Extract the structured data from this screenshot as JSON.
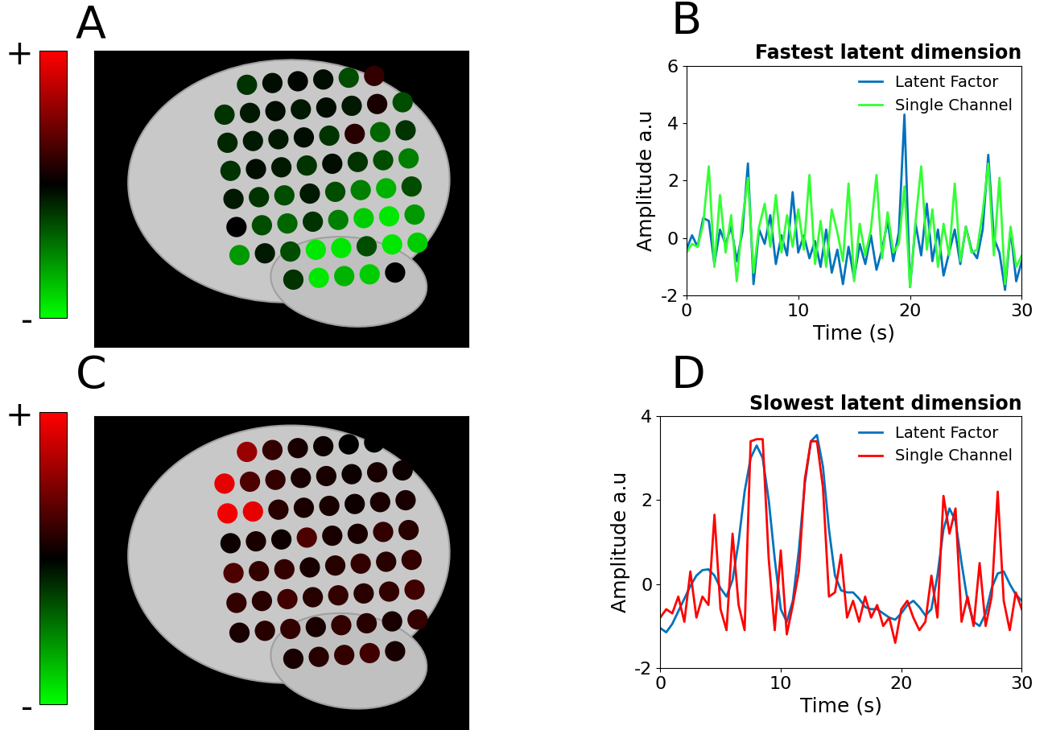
{
  "chart_data": [
    {
      "type": "electrode_map",
      "panel": "A",
      "colorbar": {
        "range": [
          -1,
          1
        ],
        "ticks": [
          {
            "value": 1,
            "label": "+"
          },
          {
            "value": -1,
            "label": "-"
          }
        ]
      },
      "tick_labels": false,
      "cells": [
        [
          null,
          -0.2,
          -0.05,
          -0.02,
          -0.05,
          -0.3,
          0.2,
          null
        ],
        [
          -0.2,
          -0.1,
          -0.05,
          -0.1,
          -0.05,
          -0.1,
          0.1,
          -0.3
        ],
        [
          -0.15,
          -0.1,
          -0.1,
          -0.05,
          -0.2,
          0.15,
          -0.4,
          -0.2
        ],
        [
          -0.2,
          -0.05,
          -0.1,
          -0.2,
          -0.05,
          -0.2,
          -0.3,
          -0.5
        ],
        [
          -0.1,
          -0.2,
          -0.3,
          -0.1,
          -0.3,
          -0.5,
          -0.7,
          -0.3
        ],
        [
          0.0,
          -0.3,
          -0.4,
          -0.2,
          -0.5,
          -0.8,
          -0.9,
          -0.6
        ],
        [
          -0.6,
          -0.1,
          -0.3,
          -0.9,
          -0.9,
          -0.3,
          -0.9,
          -0.8
        ],
        [
          null,
          null,
          -0.2,
          -0.9,
          -0.7,
          -0.8,
          0.0,
          null
        ]
      ]
    },
    {
      "type": "line",
      "panel": "B",
      "title": "Fastest latent dimension",
      "x_label": "Time (s)",
      "y_label": "Amplitude a.u",
      "xlim": [
        0,
        30
      ],
      "xticks": [
        0,
        10,
        20,
        30
      ],
      "ylim": [
        -2,
        6
      ],
      "yticks": [
        -2,
        0,
        2,
        4,
        6
      ],
      "legend": "upper right",
      "x": [
        0,
        0.5,
        1,
        1.5,
        2,
        2.5,
        3,
        3.5,
        4,
        4.5,
        5,
        5.5,
        6,
        6.5,
        7,
        7.5,
        8,
        8.5,
        9,
        9.5,
        10,
        10.5,
        11,
        11.5,
        12,
        12.5,
        13,
        13.5,
        14,
        14.5,
        15,
        15.5,
        16,
        16.5,
        17,
        17.5,
        18,
        18.5,
        19,
        19.5,
        20,
        20.5,
        21,
        21.5,
        22,
        22.5,
        23,
        23.5,
        24,
        24.5,
        25,
        25.5,
        26,
        26.5,
        27,
        27.5,
        28,
        28.5,
        29,
        29.5,
        30
      ],
      "series": [
        {
          "name": "Latent Factor",
          "color": "#0072bd",
          "values": [
            -0.4,
            0.1,
            -0.3,
            0.7,
            0.6,
            -0.9,
            0.3,
            -0.2,
            0.4,
            -0.8,
            0.2,
            2.6,
            -1.6,
            0.3,
            -0.2,
            0.8,
            -0.9,
            0.1,
            -0.6,
            1.6,
            -0.5,
            0.1,
            -0.7,
            -0.1,
            -1.0,
            0.3,
            -1.2,
            -0.4,
            -1.6,
            -0.3,
            -1.4,
            -0.2,
            -0.9,
            0.1,
            -1.1,
            -0.4,
            0.6,
            -0.8,
            0.2,
            4.3,
            -1.7,
            0.5,
            -0.6,
            1.2,
            -0.8,
            0.3,
            -1.3,
            -0.5,
            0.3,
            -0.9,
            0.4,
            -0.4,
            -0.7,
            0.3,
            2.9,
            0.0,
            -0.5,
            -1.8,
            0.3,
            -1.5,
            -0.8
          ]
        },
        {
          "name": "Single Channel",
          "color": "#33ff33",
          "values": [
            -0.5,
            -0.2,
            -0.3,
            0.5,
            2.5,
            -1.0,
            1.5,
            -0.5,
            0.8,
            -1.5,
            0.6,
            2.1,
            -1.2,
            0.4,
            1.2,
            -0.3,
            1.5,
            -0.5,
            0.8,
            -0.3,
            1.0,
            -0.4,
            2.2,
            -0.9,
            0.6,
            -1.0,
            1.0,
            0.2,
            -0.8,
            1.9,
            -1.5,
            0.5,
            -0.6,
            0.3,
            2.2,
            -0.7,
            0.9,
            -0.5,
            -0.2,
            1.8,
            -1.7,
            0.6,
            2.5,
            -0.4,
            1.0,
            -1.0,
            0.5,
            -0.6,
            1.9,
            -0.8,
            0.4,
            -0.5,
            -0.4,
            0.9,
            2.6,
            -0.6,
            2.1,
            -1.6,
            0.4,
            -1.0,
            -0.6
          ]
        }
      ]
    },
    {
      "type": "electrode_map",
      "panel": "C",
      "colorbar": {
        "range": [
          -1,
          1
        ],
        "ticks": [
          {
            "value": 1,
            "label": "+"
          },
          {
            "value": -1,
            "label": "-"
          }
        ]
      },
      "tick_labels": false,
      "cells": [
        [
          null,
          0.6,
          0.2,
          0.1,
          0.05,
          0.0,
          0.0,
          null
        ],
        [
          0.9,
          0.3,
          0.2,
          0.1,
          0.1,
          0.05,
          0.1,
          0.05
        ],
        [
          0.95,
          0.9,
          0.15,
          0.1,
          0.1,
          0.05,
          0.1,
          0.1
        ],
        [
          0.05,
          0.1,
          0.05,
          0.3,
          0.1,
          0.1,
          0.2,
          0.15
        ],
        [
          0.3,
          0.2,
          0.2,
          0.1,
          0.15,
          0.2,
          0.15,
          0.2
        ],
        [
          0.2,
          0.15,
          0.25,
          0.15,
          0.2,
          0.15,
          0.2,
          0.25
        ],
        [
          0.1,
          0.15,
          0.2,
          0.1,
          0.2,
          0.15,
          0.1,
          0.2
        ],
        [
          null,
          null,
          0.1,
          0.15,
          0.2,
          0.25,
          0.1,
          null
        ]
      ]
    },
    {
      "type": "line",
      "panel": "D",
      "title": "Slowest latent dimension",
      "x_label": "Time (s)",
      "y_label": "Amplitude a.u",
      "xlim": [
        0,
        30
      ],
      "xticks": [
        0,
        10,
        20,
        30
      ],
      "ylim": [
        -2,
        4
      ],
      "yticks": [
        -2,
        0,
        2,
        4
      ],
      "legend": "upper right",
      "x": [
        0,
        0.5,
        1,
        1.5,
        2,
        2.5,
        3,
        3.5,
        4,
        4.5,
        5,
        5.5,
        6,
        6.5,
        7,
        7.5,
        8,
        8.5,
        9,
        9.5,
        10,
        10.5,
        11,
        11.5,
        12,
        12.5,
        13,
        13.5,
        14,
        14.5,
        15,
        15.5,
        16,
        16.5,
        17,
        17.5,
        18,
        18.5,
        19,
        19.5,
        20,
        20.5,
        21,
        21.5,
        22,
        22.5,
        23,
        23.5,
        24,
        24.5,
        25,
        25.5,
        26,
        26.5,
        27,
        27.5,
        28,
        28.5,
        29,
        29.5,
        30
      ],
      "series": [
        {
          "name": "Latent Factor",
          "color": "#0072bd",
          "values": [
            -1.05,
            -1.15,
            -0.95,
            -0.65,
            -0.35,
            -0.05,
            0.2,
            0.33,
            0.35,
            0.2,
            -0.1,
            -0.3,
            0.1,
            1.0,
            2.2,
            3.0,
            3.3,
            3.0,
            2.0,
            0.6,
            -0.6,
            -0.9,
            -0.4,
            0.8,
            2.4,
            3.4,
            3.55,
            2.8,
            1.3,
            0.2,
            -0.15,
            -0.2,
            -0.2,
            -0.35,
            -0.55,
            -0.6,
            -0.6,
            -0.7,
            -0.8,
            -0.85,
            -0.7,
            -0.5,
            -0.4,
            -0.55,
            -0.75,
            -0.6,
            0.2,
            1.3,
            1.8,
            1.5,
            0.5,
            -0.4,
            -0.9,
            -1.0,
            -0.7,
            -0.1,
            0.25,
            0.3,
            0.0,
            -0.25,
            -0.4
          ]
        },
        {
          "name": "Single Channel",
          "color": "#ff0000",
          "values": [
            -0.8,
            -0.6,
            -0.7,
            -0.3,
            -0.9,
            0.3,
            -0.8,
            -0.3,
            -0.5,
            1.65,
            -0.6,
            -1.1,
            1.2,
            -0.5,
            -1.1,
            3.4,
            3.45,
            3.45,
            0.6,
            -1.1,
            0.8,
            -1.2,
            -0.5,
            0.3,
            2.5,
            3.4,
            3.4,
            2.3,
            -0.3,
            -0.2,
            0.7,
            -0.8,
            -0.4,
            -0.9,
            -0.3,
            -0.8,
            -0.5,
            -1.0,
            -0.8,
            -1.4,
            -0.6,
            -0.4,
            -0.8,
            -1.1,
            -0.9,
            0.2,
            -0.8,
            2.1,
            1.2,
            1.8,
            -0.9,
            -0.3,
            -1.0,
            0.5,
            -1.0,
            -0.3,
            2.2,
            -0.4,
            -1.1,
            -0.2,
            -0.6
          ]
        }
      ]
    }
  ]
}
